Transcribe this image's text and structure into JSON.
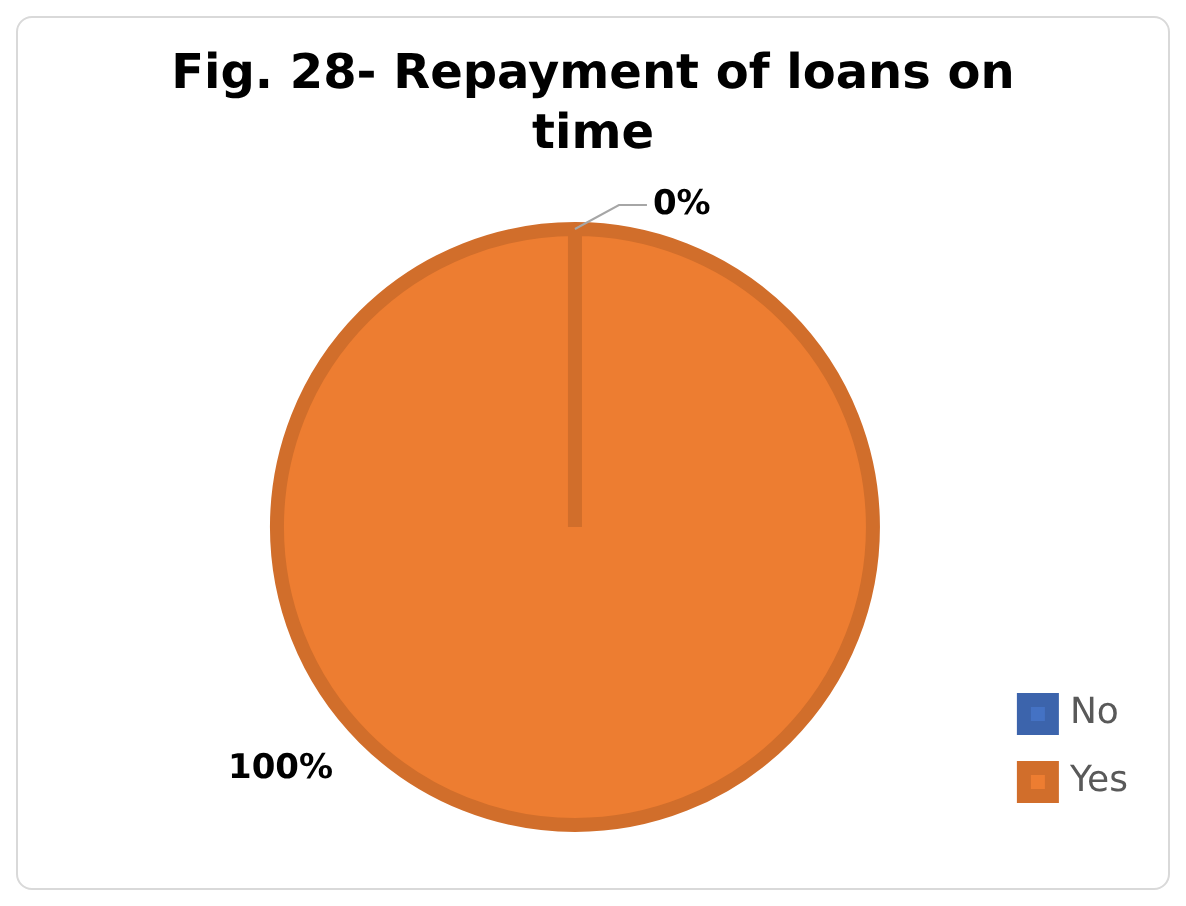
{
  "chart_data": {
    "type": "pie",
    "title": "Fig. 28- Repayment of loans on time",
    "categories": [
      "No",
      "Yes"
    ],
    "values": [
      0,
      100
    ],
    "colors": [
      "#4472c4",
      "#ed7d31"
    ],
    "value_labels": [
      "0%",
      "100%"
    ],
    "legend": "bottom right"
  }
}
